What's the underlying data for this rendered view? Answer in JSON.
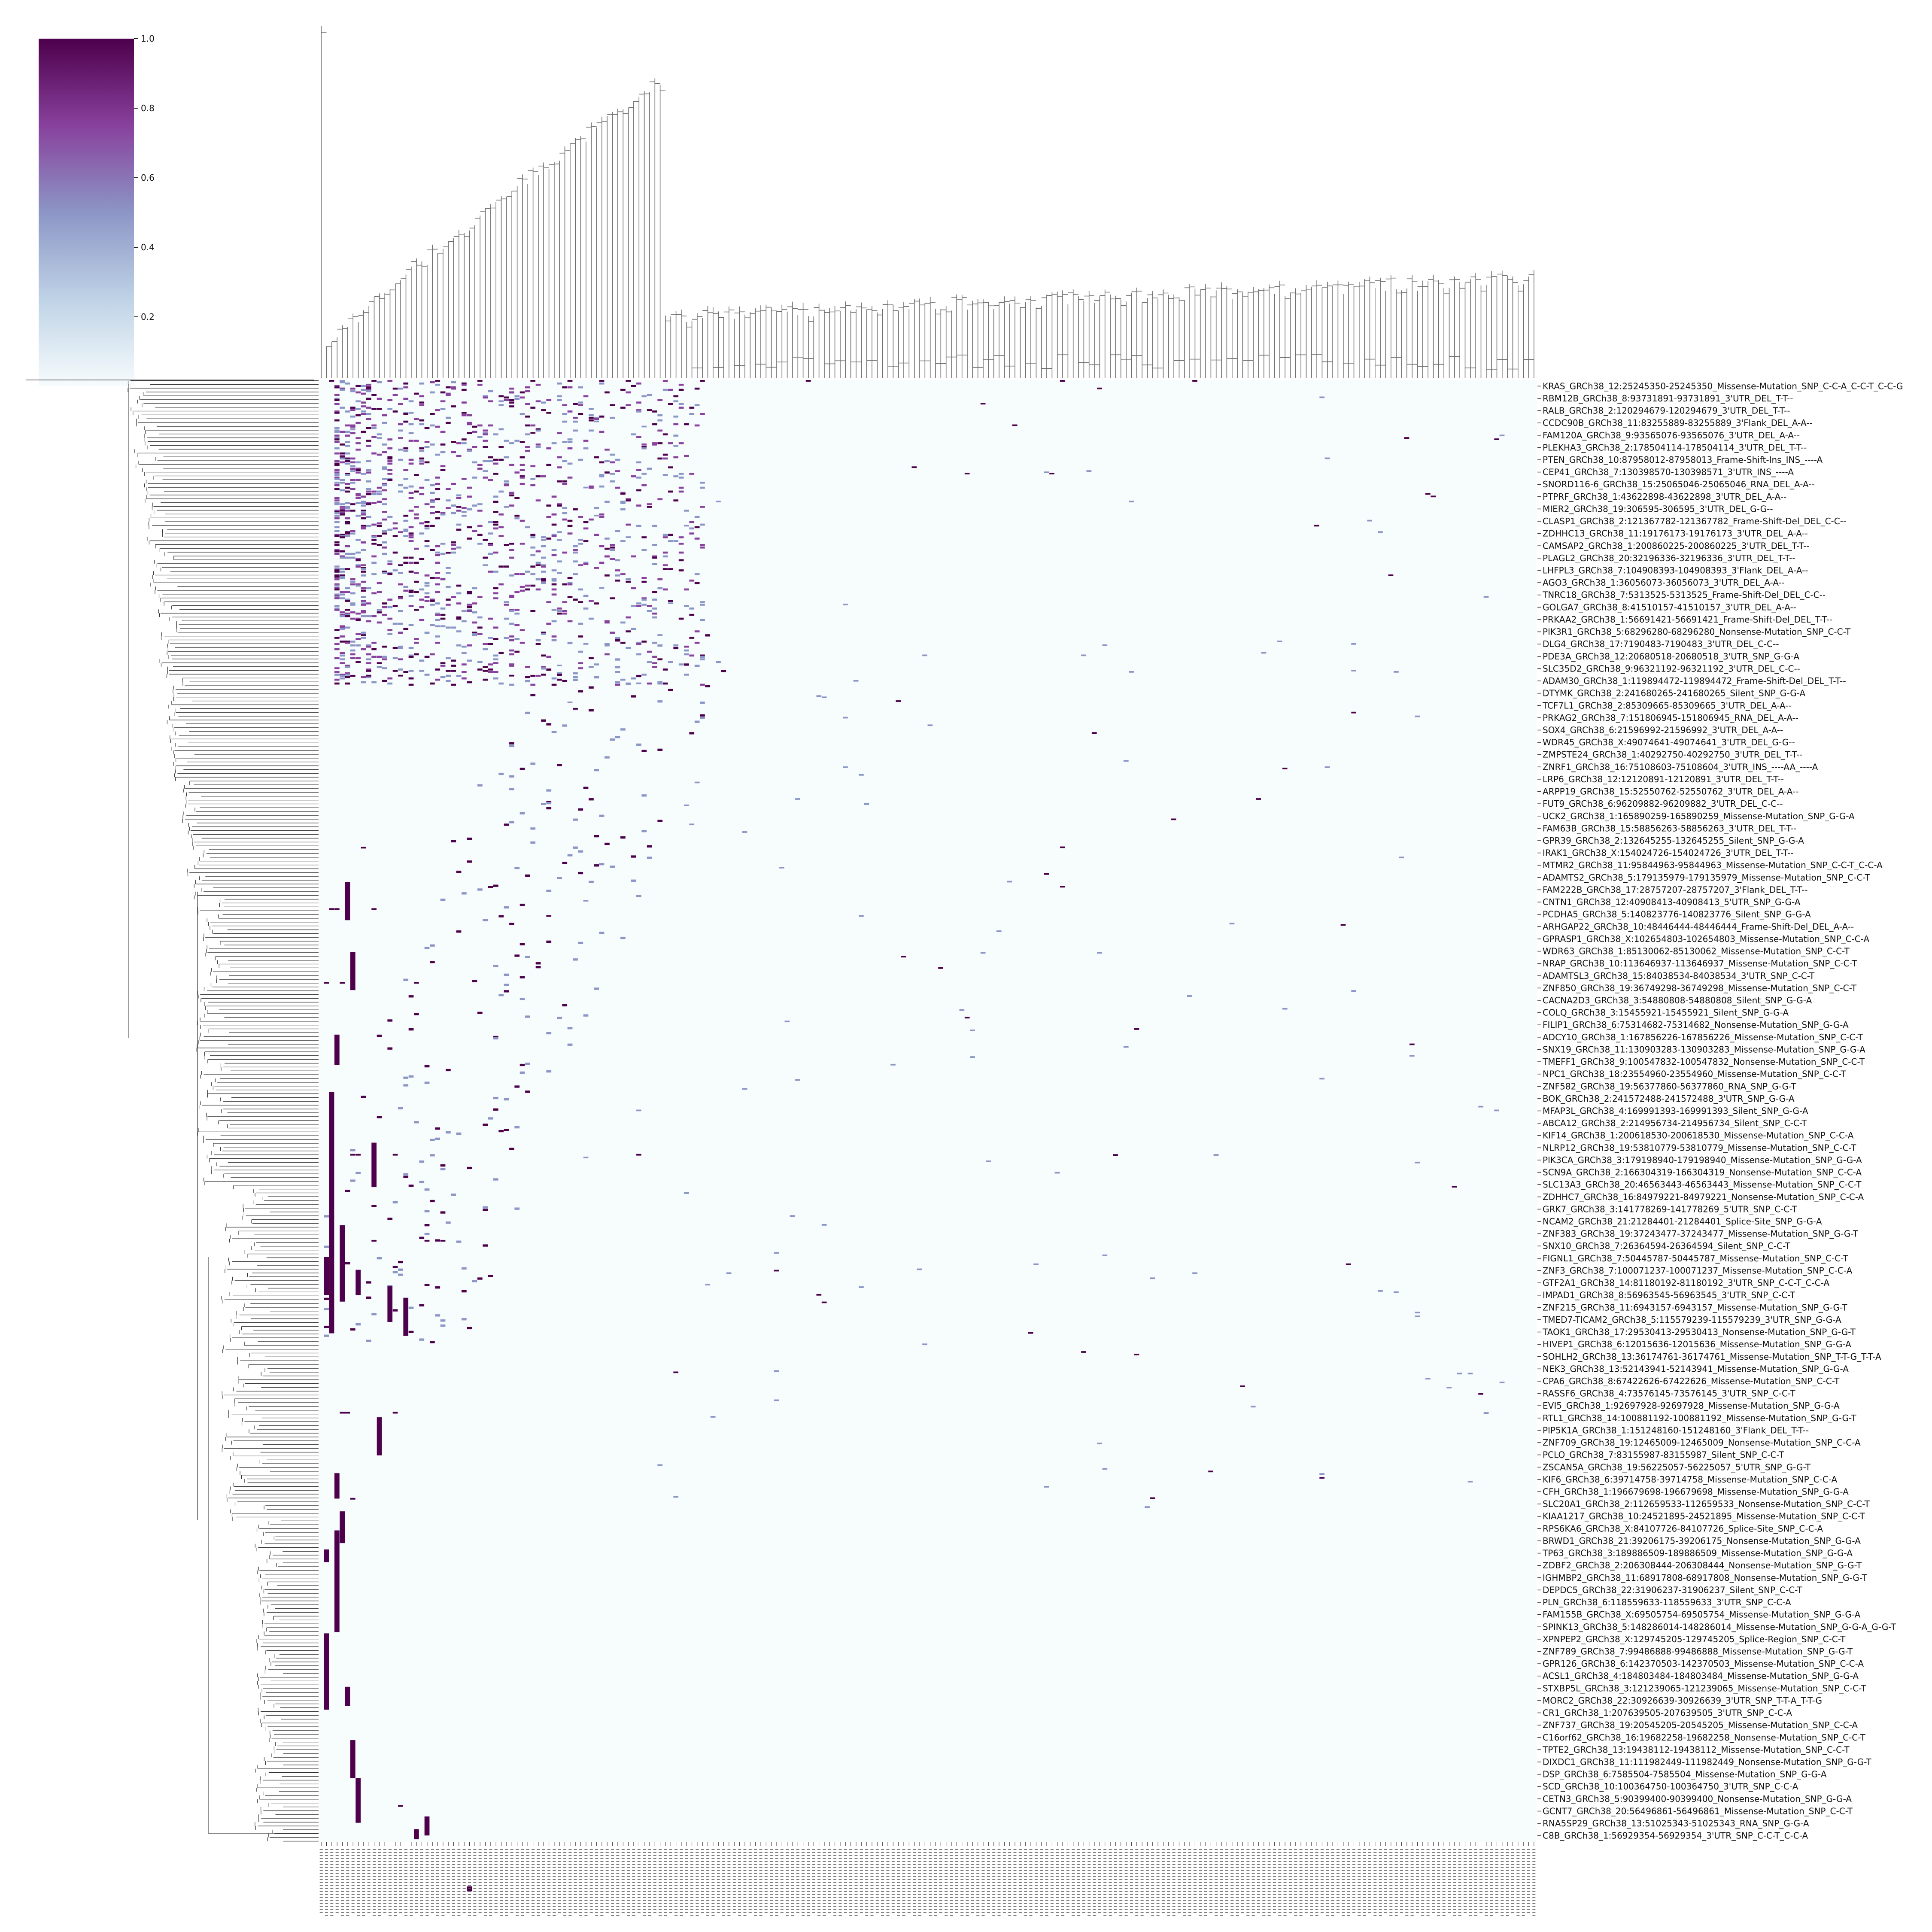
{
  "chart_data": {
    "type": "heatmap",
    "title": "",
    "xlabel": "",
    "ylabel": "",
    "colormap": "BuPu",
    "colors": {
      "low": "#f7fcfd",
      "mid_low": "#bfd3e6",
      "mid": "#8c96c6",
      "mid_high": "#88419d",
      "high": "#4d004b"
    },
    "colorbar": {
      "range": [
        0.0,
        1.0
      ],
      "ticks": [
        0.2,
        0.4,
        0.6,
        0.8,
        1.0
      ],
      "tick_labels": [
        "0.2",
        "0.4",
        "0.6",
        "0.8",
        "1.0"
      ]
    },
    "dendrograms": {
      "rows": true,
      "columns": true,
      "row_side": "left",
      "column_side": "top"
    },
    "n_rows_approx": 1150,
    "n_cols_approx": 230,
    "column_labels_visible": false,
    "value_encoding": "binary mutation presence (0 = light, 1 = dark purple)",
    "row_labels": [
      "KRAS_GRCh38_12:25245350-25245350_Missense-Mutation_SNP_C-C-A_C-C-T_C-C-G",
      "RBM12B_GRCh38_8:93731891-93731891_3'UTR_DEL_T-T--",
      "RALB_GRCh38_2:120294679-120294679_3'UTR_DEL_T-T--",
      "CCDC90B_GRCh38_11:83255889-83255889_3'Flank_DEL_A-A--",
      "FAM120A_GRCh38_9:93565076-93565076_3'UTR_DEL_A-A--",
      "PLEKHA3_GRCh38_2:178504114-178504114_3'UTR_DEL_T-T--",
      "PTEN_GRCh38_10:87958012-87958013_Frame-Shift-Ins_INS_----A",
      "CEP41_GRCh38_7:130398570-130398571_3'UTR_INS_----A",
      "SNORD116-6_GRCh38_15:25065046-25065046_RNA_DEL_A-A--",
      "PTPRF_GRCh38_1:43622898-43622898_3'UTR_DEL_A-A--",
      "MIER2_GRCh38_19:306595-306595_3'UTR_DEL_G-G--",
      "CLASP1_GRCh38_2:121367782-121367782_Frame-Shift-Del_DEL_C-C--",
      "ZDHHC13_GRCh38_11:19176173-19176173_3'UTR_DEL_A-A--",
      "CAMSAP2_GRCh38_1:200860225-200860225_3'UTR_DEL_T-T--",
      "PLAGL2_GRCh38_20:32196336-32196336_3'UTR_DEL_T-T--",
      "LHFPL3_GRCh38_7:104908393-104908393_3'Flank_DEL_A-A--",
      "AGO3_GRCh38_1:36056073-36056073_3'UTR_DEL_A-A--",
      "TNRC18_GRCh38_7:5313525-5313525_Frame-Shift-Del_DEL_C-C--",
      "GOLGA7_GRCh38_8:41510157-41510157_3'UTR_DEL_A-A--",
      "PRKAA2_GRCh38_1:56691421-56691421_Frame-Shift-Del_DEL_T-T--",
      "PIK3R1_GRCh38_5:68296280-68296280_Nonsense-Mutation_SNP_C-C-T",
      "DLG4_GRCh38_17:7190483-7190483_3'UTR_DEL_C-C--",
      "PDE3A_GRCh38_12:20680518-20680518_3'UTR_SNP_G-G-A",
      "SLC35D2_GRCh38_9:96321192-96321192_3'UTR_DEL_C-C--",
      "ADAM30_GRCh38_1:119894472-119894472_Frame-Shift-Del_DEL_T-T--",
      "DTYMK_GRCh38_2:241680265-241680265_Silent_SNP_G-G-A",
      "TCF7L1_GRCh38_2:85309665-85309665_3'UTR_DEL_A-A--",
      "PRKAG2_GRCh38_7:151806945-151806945_RNA_DEL_A-A--",
      "SOX4_GRCh38_6:21596992-21596992_3'UTR_DEL_A-A--",
      "WDR45_GRCh38_X:49074641-49074641_3'UTR_DEL_G-G--",
      "ZMPSTE24_GRCh38_1:40292750-40292750_3'UTR_DEL_T-T--",
      "ZNRF1_GRCh38_16:75108603-75108604_3'UTR_INS_----AA_----A",
      "LRP6_GRCh38_12:12120891-12120891_3'UTR_DEL_T-T--",
      "ARPP19_GRCh38_15:52550762-52550762_3'UTR_DEL_A-A--",
      "FUT9_GRCh38_6:96209882-96209882_3'UTR_DEL_C-C--",
      "UCK2_GRCh38_1:165890259-165890259_Missense-Mutation_SNP_G-G-A",
      "FAM63B_GRCh38_15:58856263-58856263_3'UTR_DEL_T-T--",
      "GPR39_GRCh38_2:132645255-132645255_Silent_SNP_G-G-A",
      "IRAK1_GRCh38_X:154024726-154024726_3'UTR_DEL_T-T--",
      "MTMR2_GRCh38_11:95844963-95844963_Missense-Mutation_SNP_C-C-T_C-C-A",
      "ADAMTS2_GRCh38_5:179135979-179135979_Missense-Mutation_SNP_C-C-T",
      "FAM222B_GRCh38_17:28757207-28757207_3'Flank_DEL_T-T--",
      "CNTN1_GRCh38_12:40908413-40908413_5'UTR_SNP_G-G-A",
      "PCDHA5_GRCh38_5:140823776-140823776_Silent_SNP_G-G-A",
      "ARHGAP22_GRCh38_10:48446444-48446444_Frame-Shift-Del_DEL_A-A--",
      "GPRASP1_GRCh38_X:102654803-102654803_Missense-Mutation_SNP_C-C-A",
      "WDR63_GRCh38_1:85130062-85130062_Missense-Mutation_SNP_C-C-T",
      "NRAP_GRCh38_10:113646937-113646937_Missense-Mutation_SNP_C-C-T",
      "ADAMTSL3_GRCh38_15:84038534-84038534_3'UTR_SNP_C-C-T",
      "ZNF850_GRCh38_19:36749298-36749298_Missense-Mutation_SNP_C-C-T",
      "CACNA2D3_GRCh38_3:54880808-54880808_Silent_SNP_G-G-A",
      "COLQ_GRCh38_3:15455921-15455921_Silent_SNP_G-G-A",
      "FILIP1_GRCh38_6:75314682-75314682_Nonsense-Mutation_SNP_G-G-A",
      "ADCY10_GRCh38_1:167856226-167856226_Missense-Mutation_SNP_C-C-T",
      "SNX19_GRCh38_11:130903283-130903283_Missense-Mutation_SNP_G-G-A",
      "TMEFF1_GRCh38_9:100547832-100547832_Nonsense-Mutation_SNP_C-C-T",
      "NPC1_GRCh38_18:23554960-23554960_Missense-Mutation_SNP_C-C-T",
      "ZNF582_GRCh38_19:56377860-56377860_RNA_SNP_G-G-T",
      "BOK_GRCh38_2:241572488-241572488_3'UTR_SNP_G-G-A",
      "MFAP3L_GRCh38_4:169991393-169991393_Silent_SNP_G-G-A",
      "ABCA12_GRCh38_2:214956734-214956734_Silent_SNP_C-C-T",
      "KIF14_GRCh38_1:200618530-200618530_Missense-Mutation_SNP_C-C-A",
      "NLRP12_GRCh38_19:53810779-53810779_Missense-Mutation_SNP_C-C-T",
      "PIK3CA_GRCh38_3:179198940-179198940_Missense-Mutation_SNP_G-G-A",
      "SCN9A_GRCh38_2:166304319-166304319_Nonsense-Mutation_SNP_C-C-A",
      "SLC13A3_GRCh38_20:46563443-46563443_Missense-Mutation_SNP_C-C-T",
      "ZDHHC7_GRCh38_16:84979221-84979221_Nonsense-Mutation_SNP_C-C-A",
      "GRK7_GRCh38_3:141778269-141778269_5'UTR_SNP_C-C-T",
      "NCAM2_GRCh38_21:21284401-21284401_Splice-Site_SNP_G-G-A",
      "ZNF383_GRCh38_19:37243477-37243477_Missense-Mutation_SNP_G-G-T",
      "SNX10_GRCh38_7:26364594-26364594_Silent_SNP_C-C-T",
      "FIGNL1_GRCh38_7:50445787-50445787_Missense-Mutation_SNP_C-C-T",
      "ZNF3_GRCh38_7:100071237-100071237_Missense-Mutation_SNP_C-C-A",
      "GTF2A1_GRCh38_14:81180192-81180192_3'UTR_SNP_C-C-T_C-C-A",
      "IMPAD1_GRCh38_8:56963545-56963545_3'UTR_SNP_C-C-T",
      "ZNF215_GRCh38_11:6943157-6943157_Missense-Mutation_SNP_G-G-T",
      "TMED7-TICAM2_GRCh38_5:115579239-115579239_3'UTR_SNP_G-G-A",
      "TAOK1_GRCh38_17:29530413-29530413_Nonsense-Mutation_SNP_G-G-T",
      "HIVEP1_GRCh38_6:12015636-12015636_Missense-Mutation_SNP_G-G-A",
      "SOHLH2_GRCh38_13:36174761-36174761_Missense-Mutation_SNP_T-T-G_T-T-A",
      "NEK3_GRCh38_13:52143941-52143941_Missense-Mutation_SNP_G-G-A",
      "CPA6_GRCh38_8:67422626-67422626_Missense-Mutation_SNP_C-C-T",
      "RASSF6_GRCh38_4:73576145-73576145_3'UTR_SNP_C-C-T",
      "EVI5_GRCh38_1:92697928-92697928_Missense-Mutation_SNP_G-G-A",
      "RTL1_GRCh38_14:100881192-100881192_Missense-Mutation_SNP_G-G-T",
      "PIP5K1A_GRCh38_1:151248160-151248160_3'Flank_DEL_T-T--",
      "ZNF709_GRCh38_19:12465009-12465009_Nonsense-Mutation_SNP_C-C-A",
      "PCLO_GRCh38_7:83155987-83155987_Silent_SNP_C-C-T",
      "ZSCAN5A_GRCh38_19:56225057-56225057_5'UTR_SNP_G-G-T",
      "KIF6_GRCh38_6:39714758-39714758_Missense-Mutation_SNP_C-C-A",
      "CFH_GRCh38_1:196679698-196679698_Missense-Mutation_SNP_G-G-A",
      "SLC20A1_GRCh38_2:112659533-112659533_Nonsense-Mutation_SNP_C-C-T",
      "KIAA1217_GRCh38_10:24521895-24521895_Missense-Mutation_SNP_C-C-T",
      "RPS6KA6_GRCh38_X:84107726-84107726_Splice-Site_SNP_C-C-A",
      "BRWD1_GRCh38_21:39206175-39206175_Nonsense-Mutation_SNP_G-G-A",
      "TP63_GRCh38_3:189886509-189886509_Missense-Mutation_SNP_G-G-A",
      "ZDBF2_GRCh38_2:206308444-206308444_Nonsense-Mutation_SNP_G-G-T",
      "IGHMBP2_GRCh38_11:68917808-68917808_Nonsense-Mutation_SNP_G-G-T",
      "DEPDC5_GRCh38_22:31906237-31906237_Silent_SNP_C-C-T",
      "PLN_GRCh38_6:118559633-118559633_3'UTR_SNP_C-C-A",
      "FAM155B_GRCh38_X:69505754-69505754_Missense-Mutation_SNP_G-G-A",
      "SPINK13_GRCh38_5:148286014-148286014_Missense-Mutation_SNP_G-G-A_G-G-T",
      "XPNPEP2_GRCh38_X:129745205-129745205_Splice-Region_SNP_C-C-T",
      "ZNF789_GRCh38_7:99486888-99486888_Missense-Mutation_SNP_G-G-T",
      "GPR126_GRCh38_6:142370503-142370503_Missense-Mutation_SNP_C-C-A",
      "ACSL1_GRCh38_4:184803484-184803484_Missense-Mutation_SNP_G-G-A",
      "STXBP5L_GRCh38_3:121239065-121239065_Missense-Mutation_SNP_C-C-T",
      "MORC2_GRCh38_22:30926639-30926639_3'UTR_SNP_T-T-A_T-T-G",
      "CR1_GRCh38_1:207639505-207639505_3'UTR_SNP_C-C-A",
      "ZNF737_GRCh38_19:20545205-20545205_Missense-Mutation_SNP_C-C-A",
      "C16orf62_GRCh38_16:19682258-19682258_Nonsense-Mutation_SNP_C-C-T",
      "TPTE2_GRCh38_13:19438112-19438112_Missense-Mutation_SNP_C-C-T",
      "DIXDC1_GRCh38_11:111982449-111982449_Nonsense-Mutation_SNP_G-G-T",
      "DSP_GRCh38_6:7585504-7585504_Missense-Mutation_SNP_G-G-A",
      "SCD_GRCh38_10:100364750-100364750_3'UTR_SNP_C-C-A",
      "CETN3_GRCh38_5:90399400-90399400_Nonsense-Mutation_SNP_G-G-A",
      "GCNT7_GRCh38_20:56496861-56496861_Missense-Mutation_SNP_C-C-T",
      "RNA5SP29_GRCh38_13:51025343-51025343_RNA_SNP_G-G-A",
      "C8B_GRCh38_1:56929354-56929354_3'UTR_SNP_C-C-T_C-C-A"
    ],
    "highlighted_cells": [
      {
        "row": 0,
        "cols": [
          2,
          10,
          22,
          30,
          40,
          47,
          53,
          58,
          72,
          92,
          140,
          165
        ]
      },
      {
        "row": 14,
        "cols": [
          24
        ]
      },
      {
        "row": 24,
        "cols": [
          9,
          15,
          36
        ]
      },
      {
        "row": 38,
        "cols": [
          8
        ]
      },
      {
        "row": 43,
        "cols": [
          2,
          3,
          5,
          10
        ]
      },
      {
        "row": 49,
        "cols": [
          1,
          4,
          18
        ]
      },
      {
        "row": 63,
        "cols": [
          6,
          7,
          14,
          60
        ]
      },
      {
        "row": 70,
        "cols": [
          10,
          20,
          23
        ]
      },
      {
        "row": 84,
        "cols": [
          4,
          5,
          14
        ]
      },
      {
        "row": 91,
        "cols": [
          6
        ]
      },
      {
        "row": 116,
        "cols": [
          15
        ]
      }
    ]
  }
}
